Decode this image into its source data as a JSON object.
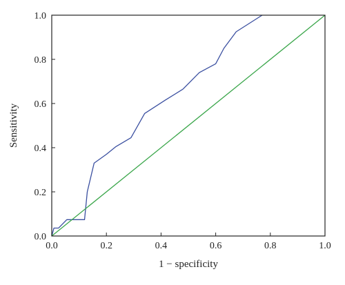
{
  "chart_data": {
    "type": "line",
    "title": "",
    "xlabel": "1 − specificity",
    "ylabel": "Sensitivity",
    "xlim": [
      0,
      1
    ],
    "ylim": [
      0,
      1
    ],
    "x_ticks": [
      "0.0",
      "0.2",
      "0.4",
      "0.6",
      "0.8",
      "1.0"
    ],
    "y_ticks": [
      "0.0",
      "0.2",
      "0.4",
      "0.6",
      "0.8",
      "1.0"
    ],
    "grid": false,
    "legend": "none",
    "series": [
      {
        "color": "#3a4fa0",
        "x": [
          0.0,
          0.008,
          0.025,
          0.055,
          0.12,
          0.13,
          0.155,
          0.2,
          0.235,
          0.29,
          0.34,
          0.415,
          0.48,
          0.54,
          0.6,
          0.63,
          0.675,
          0.77
        ],
        "y": [
          0.0,
          0.036,
          0.036,
          0.074,
          0.074,
          0.2,
          0.33,
          0.37,
          0.405,
          0.445,
          0.555,
          0.615,
          0.665,
          0.74,
          0.78,
          0.85,
          0.925,
          1.0
        ]
      },
      {
        "color": "#3aa64a",
        "x": [
          0.0,
          1.0
        ],
        "y": [
          0.0,
          1.0
        ]
      }
    ]
  }
}
